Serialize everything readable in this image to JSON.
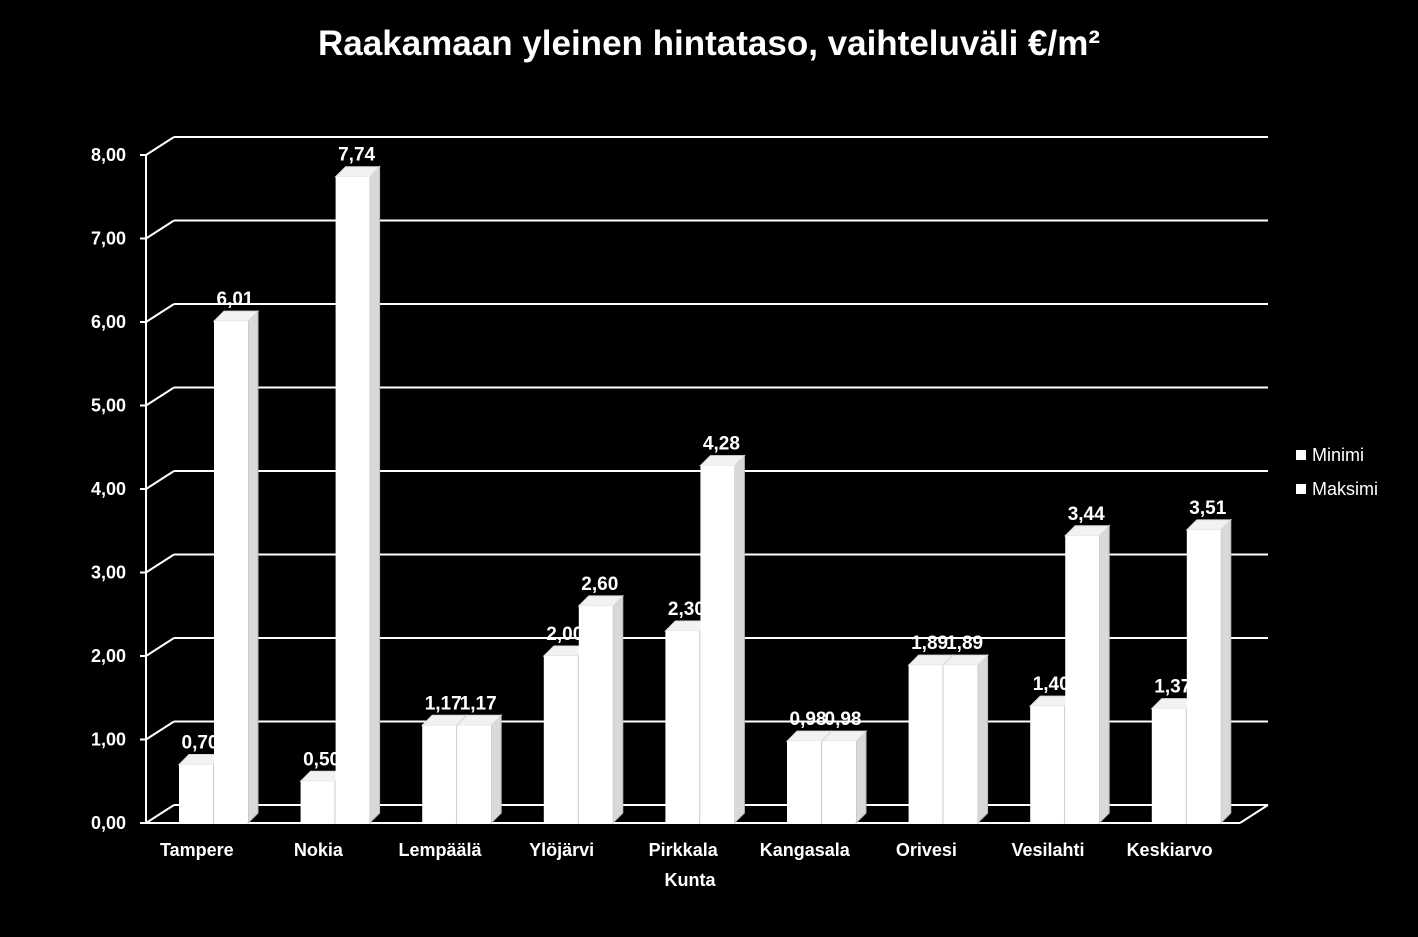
{
  "chart_data": {
    "type": "bar",
    "title": "Raakamaan yleinen hintataso, vaihteluväli €/m²",
    "xlabel": "Kunta",
    "ylabel": "",
    "ylim": [
      0,
      8
    ],
    "yticks": [
      "0,00",
      "1,00",
      "2,00",
      "3,00",
      "4,00",
      "5,00",
      "6,00",
      "7,00",
      "8,00"
    ],
    "grid": true,
    "legend_position": "right",
    "categories": [
      "Tampere",
      "Nokia",
      "Lempäälä",
      "Ylöjärvi",
      "Pirkkala",
      "Kangasala",
      "Orivesi",
      "Vesilahti",
      "Keskiarvo"
    ],
    "series": [
      {
        "name": "Minimi",
        "values": [
          0.7,
          0.5,
          1.17,
          2.0,
          2.3,
          0.98,
          1.89,
          1.4,
          1.37
        ],
        "labels": [
          "0,70",
          "0,50",
          "1,17",
          "2,00",
          "2,30",
          "0,98",
          "1,89",
          "1,40",
          "1,37"
        ]
      },
      {
        "name": "Maksimi",
        "values": [
          6.01,
          7.74,
          1.17,
          2.6,
          4.28,
          0.98,
          1.89,
          3.44,
          3.51
        ],
        "labels": [
          "6,01",
          "7,74",
          "1,17",
          "2,60",
          "4,28",
          "0,98",
          "1,89",
          "3,44",
          "3,51"
        ]
      }
    ],
    "colors": {
      "background": "#000000",
      "bars": "#ffffff",
      "grid": "#ffffff",
      "text": "#ffffff"
    }
  }
}
